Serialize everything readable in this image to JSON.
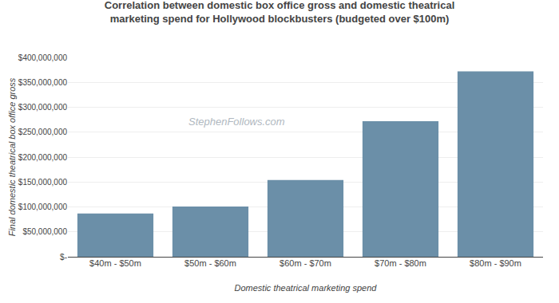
{
  "chart_data": {
    "type": "bar",
    "title": "Correlation between domestic box office gross and domestic theatrical\nmarketing spend for Hollywood blockbusters (budgeted over $100m)",
    "xlabel": "Domestic theatrical marketing spend",
    "ylabel": "Final domestic theatrical box office gross",
    "categories": [
      "$40m - $50m",
      "$50m - $60m",
      "$60m - $70m",
      "$70m - $80m",
      "$80m - $90m"
    ],
    "values": [
      87000000,
      101000000,
      154000000,
      272000000,
      372000000
    ],
    "color": "#6b8fa8",
    "ylim": [
      0,
      400000000
    ],
    "yticks": [
      {
        "value": 0,
        "label": "$-"
      },
      {
        "value": 50000000,
        "label": "$50,000,000"
      },
      {
        "value": 100000000,
        "label": "$100,000,000"
      },
      {
        "value": 150000000,
        "label": "$150,000,000"
      },
      {
        "value": 200000000,
        "label": "$200,000,000"
      },
      {
        "value": 250000000,
        "label": "$250,000,000"
      },
      {
        "value": 300000000,
        "label": "$300,000,000"
      },
      {
        "value": 350000000,
        "label": "$350,000,000"
      },
      {
        "value": 400000000,
        "label": "$400,000,000"
      }
    ],
    "grid": true,
    "annotations": [
      "StephenFollows.com"
    ]
  }
}
